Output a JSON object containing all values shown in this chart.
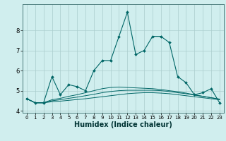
{
  "x": [
    0,
    1,
    2,
    3,
    4,
    5,
    6,
    7,
    8,
    9,
    10,
    11,
    12,
    13,
    14,
    15,
    16,
    17,
    18,
    19,
    20,
    21,
    22,
    23
  ],
  "main_line": [
    4.6,
    4.4,
    4.4,
    5.7,
    4.8,
    5.3,
    5.2,
    5.0,
    6.0,
    6.5,
    6.5,
    7.7,
    8.9,
    6.8,
    7.0,
    7.7,
    7.7,
    7.4,
    5.7,
    5.4,
    4.8,
    4.9,
    5.1,
    4.4
  ],
  "line2": [
    4.6,
    4.4,
    4.4,
    4.45,
    4.48,
    4.52,
    4.56,
    4.6,
    4.65,
    4.7,
    4.75,
    4.8,
    4.85,
    4.88,
    4.9,
    4.9,
    4.88,
    4.85,
    4.8,
    4.75,
    4.7,
    4.65,
    4.6,
    4.55
  ],
  "line3": [
    4.6,
    4.4,
    4.4,
    4.5,
    4.55,
    4.62,
    4.68,
    4.75,
    4.82,
    4.9,
    4.96,
    5.0,
    5.02,
    5.02,
    5.02,
    5.02,
    5.0,
    4.96,
    4.9,
    4.85,
    4.78,
    4.72,
    4.65,
    4.58
  ],
  "line4": [
    4.6,
    4.4,
    4.4,
    4.55,
    4.62,
    4.72,
    4.8,
    4.9,
    5.0,
    5.1,
    5.16,
    5.18,
    5.16,
    5.14,
    5.12,
    5.1,
    5.06,
    5.0,
    4.95,
    4.88,
    4.8,
    4.72,
    4.65,
    4.58
  ],
  "color": "#006666",
  "bg_color": "#d0eeee",
  "grid_color": "#aacccc",
  "xlabel": "Humidex (Indice chaleur)",
  "ylim": [
    3.9,
    9.3
  ],
  "xlim": [
    -0.5,
    23.5
  ],
  "yticks": [
    4,
    5,
    6,
    7,
    8
  ],
  "xticks": [
    0,
    1,
    2,
    3,
    4,
    5,
    6,
    7,
    8,
    9,
    10,
    11,
    12,
    13,
    14,
    15,
    16,
    17,
    18,
    19,
    20,
    21,
    22,
    23
  ]
}
